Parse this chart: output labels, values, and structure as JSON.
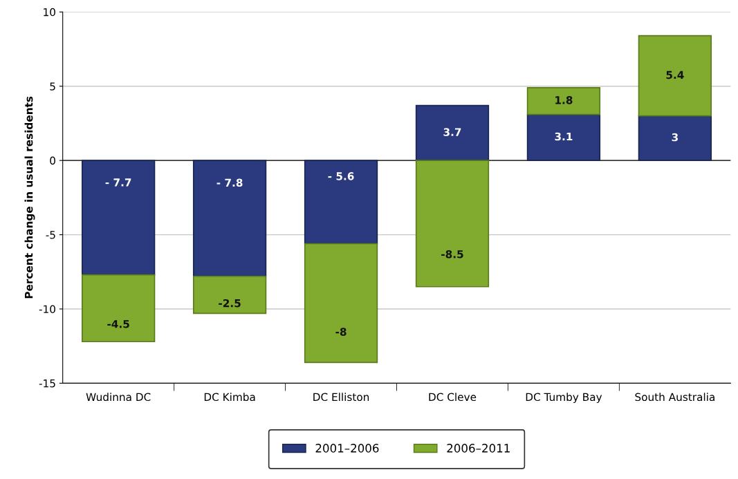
{
  "chart_data": {
    "type": "bar",
    "stacked": true,
    "ylabel": "Percent change in usual residents",
    "categories": [
      "Wudinna DC",
      "DC Kimba",
      "DC Elliston",
      "DC Cleve",
      "DC Tumby Bay",
      "South Australia"
    ],
    "series": [
      {
        "name": "2001–2006",
        "color": "#2b3a7e",
        "values": [
          -7.7,
          -7.8,
          -5.6,
          3.7,
          3.1,
          3
        ],
        "value_labels": [
          "- 7.7",
          "- 7.8",
          "- 5.6",
          "3.7",
          "3.1",
          "3"
        ]
      },
      {
        "name": "2006–2011",
        "color": "#80ab2e",
        "values": [
          -4.5,
          -2.5,
          -8,
          -8.5,
          1.8,
          5.4
        ],
        "value_labels": [
          "-4.5",
          "-2.5",
          "-8",
          "-8.5",
          "1.8",
          "5.4"
        ]
      }
    ],
    "ylim": [
      -15,
      10
    ],
    "yticks": [
      -15,
      -10,
      -5,
      0,
      5,
      10
    ],
    "grid": "y",
    "legend": "bottom"
  }
}
